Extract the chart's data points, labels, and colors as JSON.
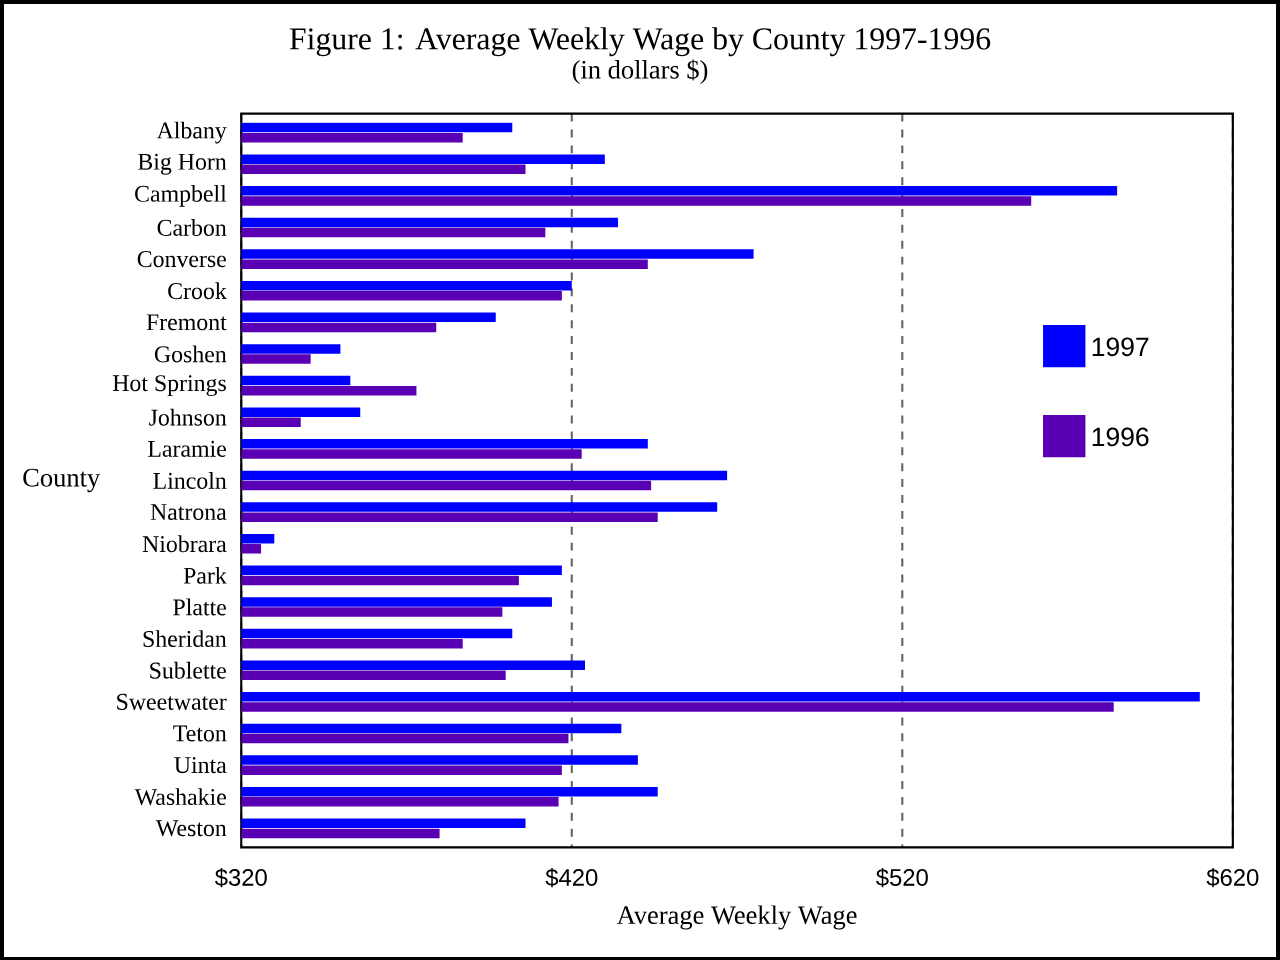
{
  "chart_data": {
    "type": "bar",
    "orientation": "horizontal",
    "title": "Figure 1:  Average Weekly Wage by County 1997-1996",
    "subtitle": "(in dollars $)",
    "xlabel": "Average Weekly Wage",
    "ylabel": "County",
    "categories": [
      "Albany",
      "Big Horn",
      "Campbell",
      "Carbon",
      "Converse",
      "Crook",
      "Fremont",
      "Goshen",
      "Hot Springs",
      "Johnson",
      "Laramie",
      "Lincoln",
      "Natrona",
      "Niobrara",
      "Park",
      "Platte",
      "Sheridan",
      "Sublette",
      "Sweetwater",
      "Teton",
      "Uinta",
      "Washakie",
      "Weston"
    ],
    "series": [
      {
        "name": "1997",
        "color": "#0000ff",
        "values": [
          402,
          430,
          585,
          434,
          475,
          420,
          397,
          350,
          353,
          356,
          443,
          467,
          464,
          330,
          417,
          414,
          402,
          424,
          610,
          435,
          440,
          446,
          406
        ]
      },
      {
        "name": "1996",
        "color": "#5a00b4",
        "values": [
          387,
          406,
          559,
          412,
          443,
          417,
          379,
          341,
          373,
          338,
          423,
          444,
          446,
          326,
          404,
          399,
          387,
          400,
          584,
          419,
          417,
          416,
          380
        ]
      }
    ],
    "xlim": [
      320,
      620
    ],
    "xticks": [
      {
        "value": 320,
        "label": "$320"
      },
      {
        "value": 420,
        "label": "$420"
      },
      {
        "value": 520,
        "label": "$520"
      },
      {
        "value": 620,
        "label": "$620"
      }
    ],
    "grid": "x",
    "legend": "right"
  }
}
